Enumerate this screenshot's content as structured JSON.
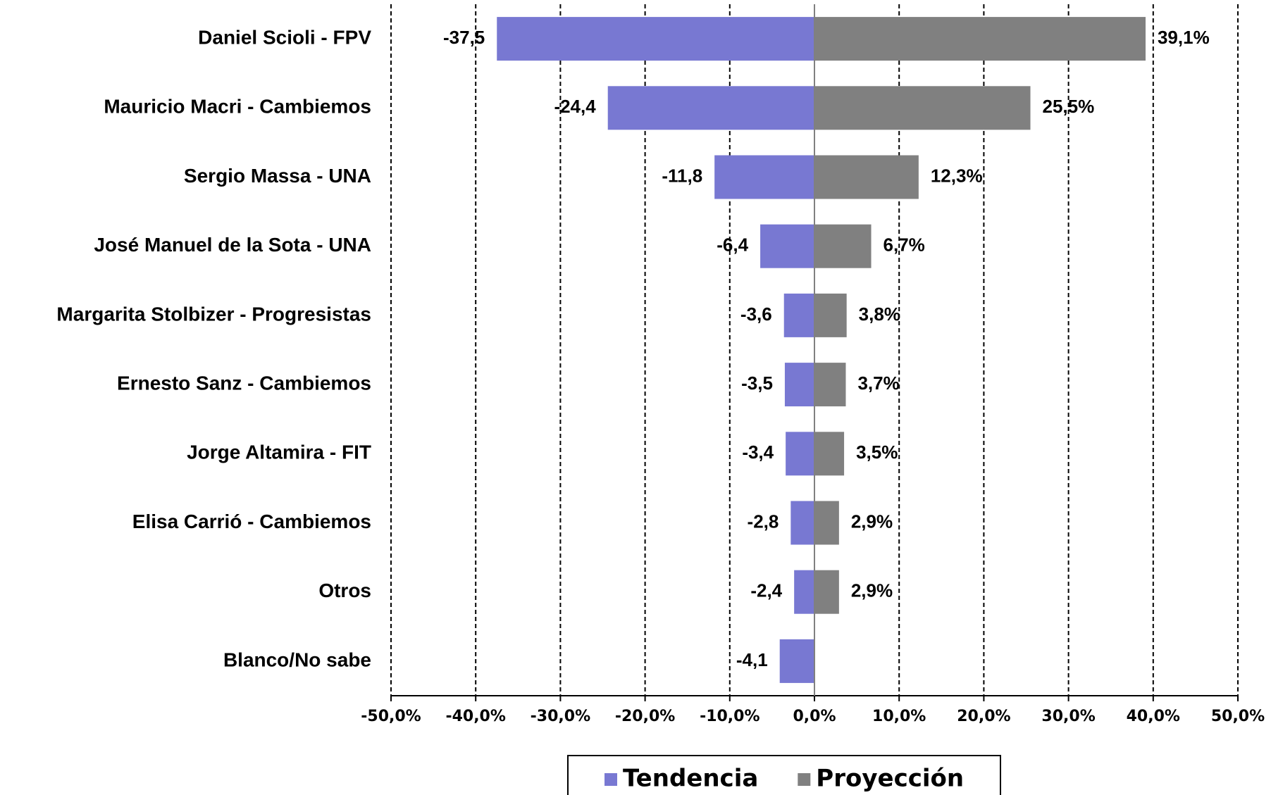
{
  "chart_data": {
    "type": "bar",
    "orientation": "horizontal",
    "categories": [
      "Daniel Scioli - FPV",
      "Mauricio Macri - Cambiemos",
      "Sergio Massa - UNA",
      "José Manuel de la Sota - UNA",
      "Margarita Stolbizer - Progresistas",
      "Ernesto Sanz - Cambiemos",
      "Jorge Altamira - FIT",
      "Elisa Carrió - Cambiemos",
      "Otros",
      "Blanco/No sabe"
    ],
    "series": [
      {
        "name": "Tendencia",
        "color": "#7878d2",
        "values": [
          -37.5,
          -24.4,
          -11.8,
          -6.4,
          -3.6,
          -3.5,
          -3.4,
          -2.8,
          -2.4,
          -4.1
        ],
        "value_labels": [
          "-37,5",
          "-24,4",
          "-11,8",
          "-6,4",
          "-3,6",
          "-3,5",
          "-3,4",
          "-2,8",
          "-2,4",
          "-4,1"
        ]
      },
      {
        "name": "Proyección",
        "color": "#808080",
        "values": [
          39.1,
          25.5,
          12.3,
          6.7,
          3.8,
          3.7,
          3.5,
          2.9,
          2.9,
          null
        ],
        "value_labels": [
          "39,1%",
          "25,5%",
          "12,3%",
          "6,7%",
          "3,8%",
          "3,7%",
          "3,5%",
          "2,9%",
          "2,9%",
          null
        ]
      }
    ],
    "xlim": [
      -50,
      50
    ],
    "xticks": [
      {
        "value": -50,
        "label": "-50,0%"
      },
      {
        "value": -40,
        "label": "-40,0%"
      },
      {
        "value": -30,
        "label": "-30,0%"
      },
      {
        "value": -20,
        "label": "-20,0%"
      },
      {
        "value": -10,
        "label": "-10,0%"
      },
      {
        "value": 0,
        "label": "0,0%"
      },
      {
        "value": 10,
        "label": "10,0%"
      },
      {
        "value": 20,
        "label": "20,0%"
      },
      {
        "value": 30,
        "label": "30,0%"
      },
      {
        "value": 40,
        "label": "40,0%"
      },
      {
        "value": 50,
        "label": "50,0%"
      }
    ],
    "grid": true,
    "legend": "bottom"
  }
}
